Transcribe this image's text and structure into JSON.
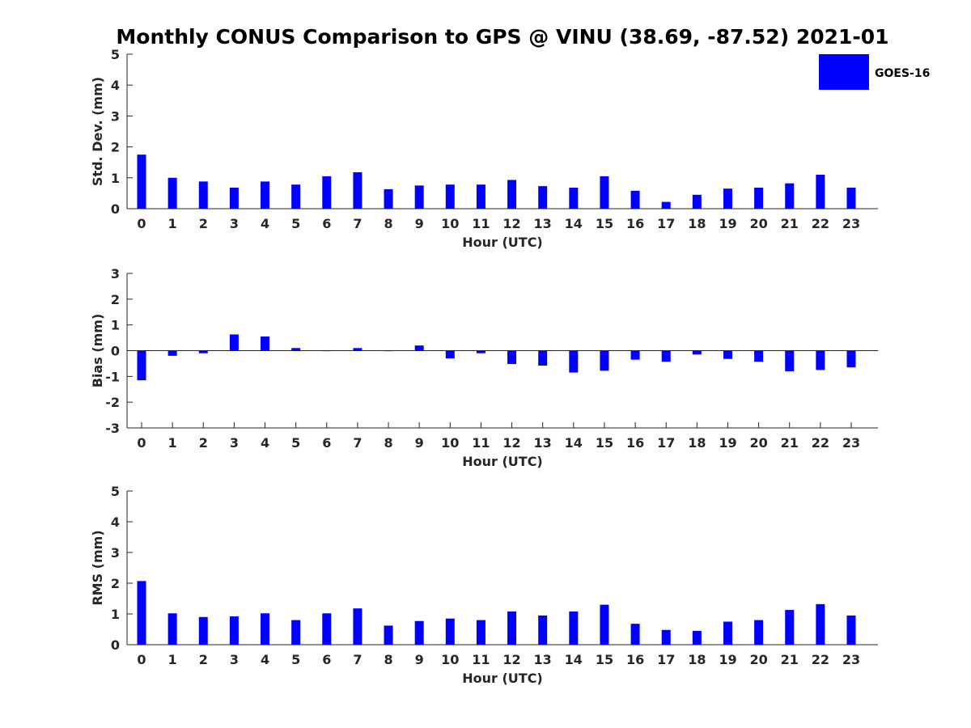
{
  "chart_data": {
    "title": "Monthly CONUS Comparison to GPS @ VINU (38.69, -87.52) 2021-01",
    "legend": {
      "label": "GOES-16",
      "color": "#0000ff",
      "placement": "top-right"
    },
    "panels": [
      {
        "type": "bar",
        "name": "std-dev",
        "ylabel": "Std. Dev. (mm)",
        "xlabel": "Hour (UTC)",
        "ylim": [
          0,
          5
        ],
        "yticks": [
          0,
          1,
          2,
          3,
          4,
          5
        ],
        "categories": [
          "0",
          "1",
          "2",
          "3",
          "4",
          "5",
          "6",
          "7",
          "8",
          "9",
          "10",
          "11",
          "12",
          "13",
          "14",
          "15",
          "16",
          "17",
          "18",
          "19",
          "20",
          "21",
          "22",
          "23"
        ],
        "series": [
          {
            "name": "GOES-16",
            "values": [
              1.75,
              1.0,
              0.88,
              0.68,
              0.88,
              0.78,
              1.05,
              1.18,
              0.63,
              0.75,
              0.78,
              0.78,
              0.93,
              0.73,
              0.68,
              1.05,
              0.58,
              0.22,
              0.45,
              0.65,
              0.68,
              0.82,
              1.1,
              0.68
            ]
          }
        ]
      },
      {
        "type": "bar",
        "name": "bias",
        "ylabel": "Bias (mm)",
        "xlabel": "Hour (UTC)",
        "ylim": [
          -3,
          3
        ],
        "yticks": [
          -3,
          -2,
          -1,
          0,
          1,
          2,
          3
        ],
        "categories": [
          "0",
          "1",
          "2",
          "3",
          "4",
          "5",
          "6",
          "7",
          "8",
          "9",
          "10",
          "11",
          "12",
          "13",
          "14",
          "15",
          "16",
          "17",
          "18",
          "19",
          "20",
          "21",
          "22",
          "23"
        ],
        "series": [
          {
            "name": "GOES-16",
            "values": [
              -1.15,
              -0.2,
              -0.1,
              0.63,
              0.55,
              0.1,
              0.0,
              0.1,
              -0.02,
              0.2,
              -0.3,
              -0.1,
              -0.52,
              -0.58,
              -0.85,
              -0.78,
              -0.35,
              -0.43,
              -0.15,
              -0.32,
              -0.43,
              -0.8,
              -0.75,
              -0.65
            ]
          }
        ]
      },
      {
        "type": "bar",
        "name": "rms",
        "ylabel": "RMS (mm)",
        "xlabel": "Hour (UTC)",
        "ylim": [
          0,
          5
        ],
        "yticks": [
          0,
          1,
          2,
          3,
          4,
          5
        ],
        "categories": [
          "0",
          "1",
          "2",
          "3",
          "4",
          "5",
          "6",
          "7",
          "8",
          "9",
          "10",
          "11",
          "12",
          "13",
          "14",
          "15",
          "16",
          "17",
          "18",
          "19",
          "20",
          "21",
          "22",
          "23"
        ],
        "series": [
          {
            "name": "GOES-16",
            "values": [
              2.07,
              1.02,
              0.9,
              0.92,
              1.02,
              0.8,
              1.02,
              1.18,
              0.62,
              0.77,
              0.85,
              0.8,
              1.08,
              0.95,
              1.08,
              1.3,
              0.68,
              0.48,
              0.45,
              0.75,
              0.8,
              1.13,
              1.32,
              0.95
            ]
          }
        ]
      }
    ]
  }
}
